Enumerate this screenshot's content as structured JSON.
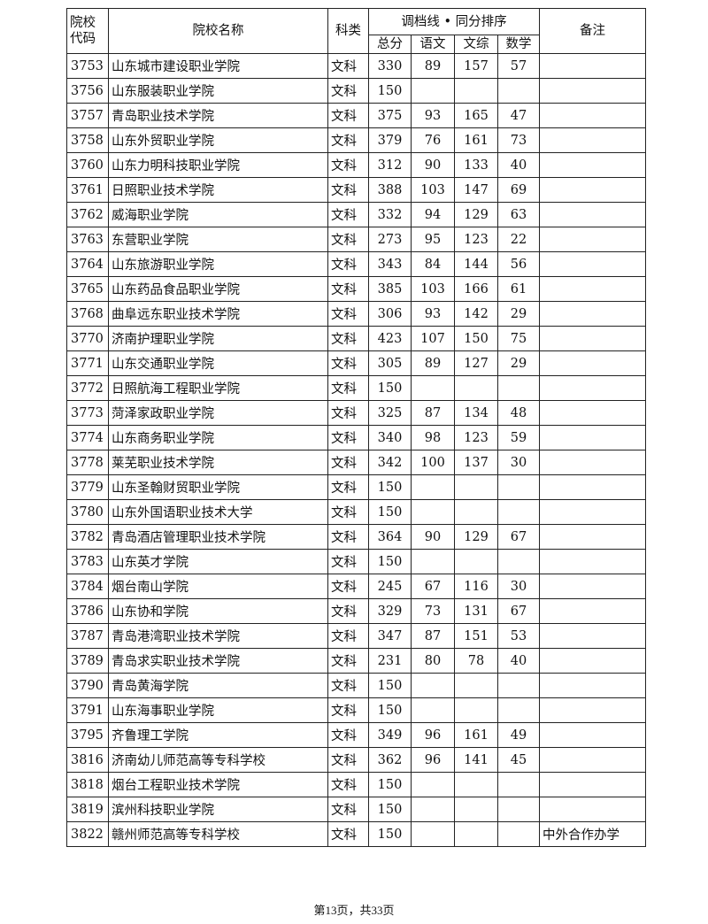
{
  "header": {
    "code": "院校代码",
    "name": "院校名称",
    "type": "科类",
    "group": "调档线 • 同分排序",
    "total": "总分",
    "chinese": "语文",
    "liberal": "文综",
    "math": "数学",
    "note": "备注"
  },
  "rows": [
    [
      "3753",
      "山东城市建设职业学院",
      "文科",
      "330",
      "89",
      "157",
      "57",
      ""
    ],
    [
      "3756",
      "山东服装职业学院",
      "文科",
      "150",
      "",
      "",
      "",
      ""
    ],
    [
      "3757",
      "青岛职业技术学院",
      "文科",
      "375",
      "93",
      "165",
      "47",
      ""
    ],
    [
      "3758",
      "山东外贸职业学院",
      "文科",
      "379",
      "76",
      "161",
      "73",
      ""
    ],
    [
      "3760",
      "山东力明科技职业学院",
      "文科",
      "312",
      "90",
      "133",
      "40",
      ""
    ],
    [
      "3761",
      "日照职业技术学院",
      "文科",
      "388",
      "103",
      "147",
      "69",
      ""
    ],
    [
      "3762",
      "威海职业学院",
      "文科",
      "332",
      "94",
      "129",
      "63",
      ""
    ],
    [
      "3763",
      "东营职业学院",
      "文科",
      "273",
      "95",
      "123",
      "22",
      ""
    ],
    [
      "3764",
      "山东旅游职业学院",
      "文科",
      "343",
      "84",
      "144",
      "56",
      ""
    ],
    [
      "3765",
      "山东药品食品职业学院",
      "文科",
      "385",
      "103",
      "166",
      "61",
      ""
    ],
    [
      "3768",
      "曲阜远东职业技术学院",
      "文科",
      "306",
      "93",
      "142",
      "29",
      ""
    ],
    [
      "3770",
      "济南护理职业学院",
      "文科",
      "423",
      "107",
      "150",
      "75",
      ""
    ],
    [
      "3771",
      "山东交通职业学院",
      "文科",
      "305",
      "89",
      "127",
      "29",
      ""
    ],
    [
      "3772",
      "日照航海工程职业学院",
      "文科",
      "150",
      "",
      "",
      "",
      ""
    ],
    [
      "3773",
      "菏泽家政职业学院",
      "文科",
      "325",
      "87",
      "134",
      "48",
      ""
    ],
    [
      "3774",
      "山东商务职业学院",
      "文科",
      "340",
      "98",
      "123",
      "59",
      ""
    ],
    [
      "3778",
      "莱芜职业技术学院",
      "文科",
      "342",
      "100",
      "137",
      "30",
      ""
    ],
    [
      "3779",
      "山东圣翰财贸职业学院",
      "文科",
      "150",
      "",
      "",
      "",
      ""
    ],
    [
      "3780",
      "山东外国语职业技术大学",
      "文科",
      "150",
      "",
      "",
      "",
      ""
    ],
    [
      "3782",
      "青岛酒店管理职业技术学院",
      "文科",
      "364",
      "90",
      "129",
      "67",
      ""
    ],
    [
      "3783",
      "山东英才学院",
      "文科",
      "150",
      "",
      "",
      "",
      ""
    ],
    [
      "3784",
      "烟台南山学院",
      "文科",
      "245",
      "67",
      "116",
      "30",
      ""
    ],
    [
      "3786",
      "山东协和学院",
      "文科",
      "329",
      "73",
      "131",
      "67",
      ""
    ],
    [
      "3787",
      "青岛港湾职业技术学院",
      "文科",
      "347",
      "87",
      "151",
      "53",
      ""
    ],
    [
      "3789",
      "青岛求实职业技术学院",
      "文科",
      "231",
      "80",
      "78",
      "40",
      ""
    ],
    [
      "3790",
      "青岛黄海学院",
      "文科",
      "150",
      "",
      "",
      "",
      ""
    ],
    [
      "3791",
      "山东海事职业学院",
      "文科",
      "150",
      "",
      "",
      "",
      ""
    ],
    [
      "3795",
      "齐鲁理工学院",
      "文科",
      "349",
      "96",
      "161",
      "49",
      ""
    ],
    [
      "3816",
      "济南幼儿师范高等专科学校",
      "文科",
      "362",
      "96",
      "141",
      "45",
      ""
    ],
    [
      "3818",
      "烟台工程职业技术学院",
      "文科",
      "150",
      "",
      "",
      "",
      ""
    ],
    [
      "3819",
      "滨州科技职业学院",
      "文科",
      "150",
      "",
      "",
      "",
      ""
    ],
    [
      "3822",
      "赣州师范高等专科学校",
      "文科",
      "150",
      "",
      "",
      "",
      "中外合作办学"
    ]
  ],
  "footer": "第13页，共33页"
}
